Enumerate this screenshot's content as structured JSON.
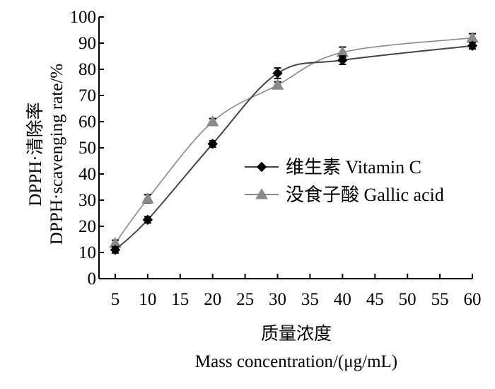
{
  "chart_data": {
    "type": "line",
    "x": [
      5,
      10,
      20,
      30,
      40,
      60
    ],
    "xticks": [
      5,
      10,
      15,
      20,
      25,
      30,
      35,
      40,
      45,
      50,
      55,
      60
    ],
    "yticks": [
      0,
      10,
      20,
      30,
      40,
      50,
      60,
      70,
      80,
      90,
      100
    ],
    "xlim": [
      2.5,
      60
    ],
    "ylim": [
      0,
      100
    ],
    "xlabel_cn": "质量浓度",
    "xlabel_en": "Mass concentration/(μg/mL)",
    "ylabel_cn": "DPPH·清除率",
    "ylabel_en": "DPPH·scavenging rate/%",
    "grid": false,
    "legend_position": "center-right",
    "series": [
      {
        "name": "维生素 Vitamin C",
        "marker": "diamond",
        "color": "#444444",
        "values": [
          11,
          22.5,
          51.5,
          78.5,
          83.5,
          89
        ],
        "errors": [
          1.2,
          1.2,
          1.2,
          2.0,
          1.6,
          1.2
        ]
      },
      {
        "name": "没食子酸  Gallic acid",
        "marker": "triangle",
        "color": "#8a8a8a",
        "values": [
          13.5,
          30.5,
          60,
          74,
          86.5,
          92
        ],
        "errors": [
          1.2,
          1.6,
          1.2,
          1.2,
          2.0,
          1.6
        ]
      }
    ]
  }
}
